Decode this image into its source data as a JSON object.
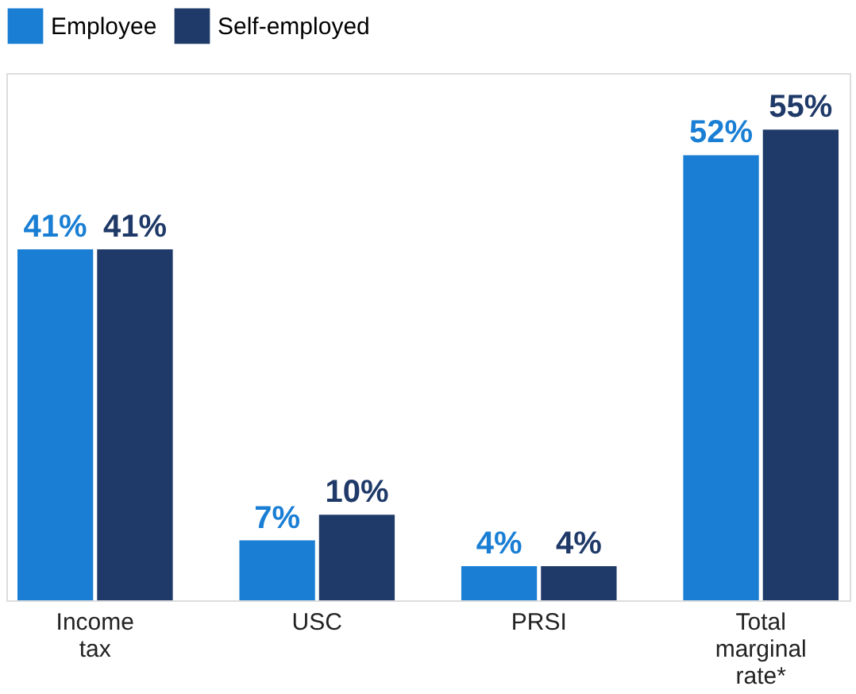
{
  "chart_data": {
    "type": "bar",
    "categories": [
      "Income tax",
      "USC",
      "PRSI",
      "Total marginal rate*"
    ],
    "series": [
      {
        "name": "Employee",
        "color": "#1a7fd4",
        "values": [
          41,
          7,
          4,
          52
        ],
        "value_labels": [
          "41%",
          "7%",
          "4%",
          "52%"
        ]
      },
      {
        "name": "Self-employed",
        "color": "#1f3a68",
        "values": [
          41,
          10,
          4,
          55
        ],
        "value_labels": [
          "41%",
          "10%",
          "4%",
          "55%"
        ]
      }
    ],
    "legend": "top",
    "grid": false
  }
}
